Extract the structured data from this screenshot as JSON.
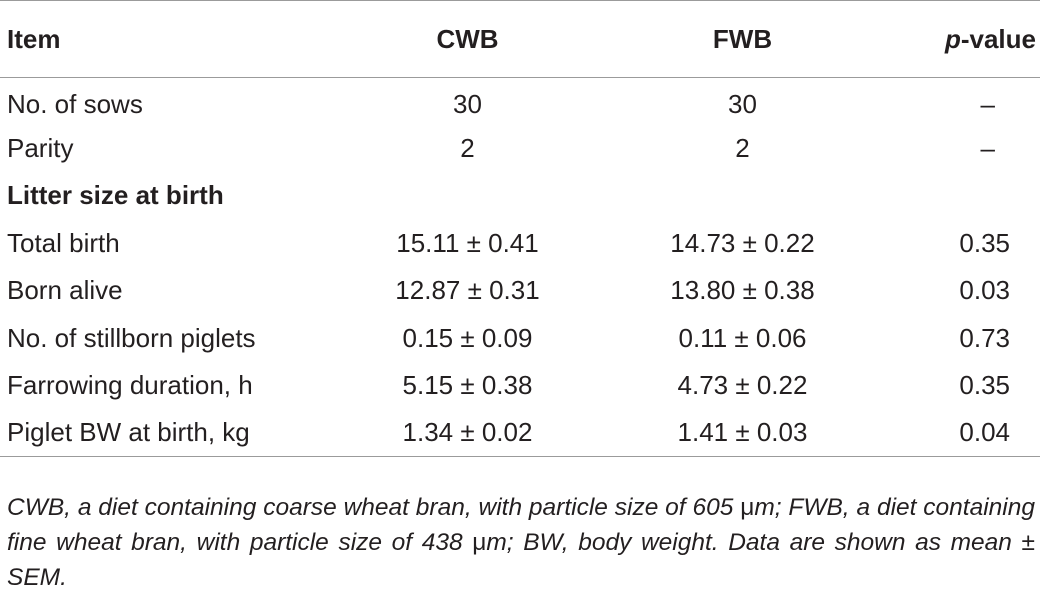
{
  "table": {
    "headers": {
      "item": "Item",
      "cwb": "CWB",
      "fwb": "FWB",
      "p_value_italic": "p",
      "p_value_rest": "-value"
    },
    "rows": [
      {
        "item": "No. of sows",
        "cwb": "30",
        "fwb": "30",
        "p": "–"
      },
      {
        "item": "Parity",
        "cwb": "2",
        "fwb": "2",
        "p": "–"
      },
      {
        "item": "Litter size at birth",
        "cwb": "",
        "fwb": "",
        "p": ""
      },
      {
        "item": "Total birth",
        "cwb": "15.11 ± 0.41",
        "fwb": "14.73 ± 0.22",
        "p": "0.35"
      },
      {
        "item": "Born alive",
        "cwb": "12.87 ± 0.31",
        "fwb": "13.80 ± 0.38",
        "p": "0.03"
      },
      {
        "item": "No. of stillborn piglets",
        "cwb": "0.15 ± 0.09",
        "fwb": "0.11 ± 0.06",
        "p": "0.73"
      },
      {
        "item": "Farrowing duration, h",
        "cwb": "5.15 ± 0.38",
        "fwb": "4.73 ± 0.22",
        "p": "0.35"
      },
      {
        "item": "Piglet BW at birth, kg",
        "cwb": "1.34 ± 0.02",
        "fwb": "1.41 ± 0.03",
        "p": "0.04"
      }
    ]
  },
  "footnote": {
    "part1": "CWB, a diet containing coarse wheat bran, with particle size of 605 ",
    "unit1": "μ",
    "part2": "m; FWB, a diet containing fine wheat bran, with particle size of 438 ",
    "unit2": "μ",
    "part3": "m; BW, body weight. Data are shown as mean ± SEM."
  }
}
